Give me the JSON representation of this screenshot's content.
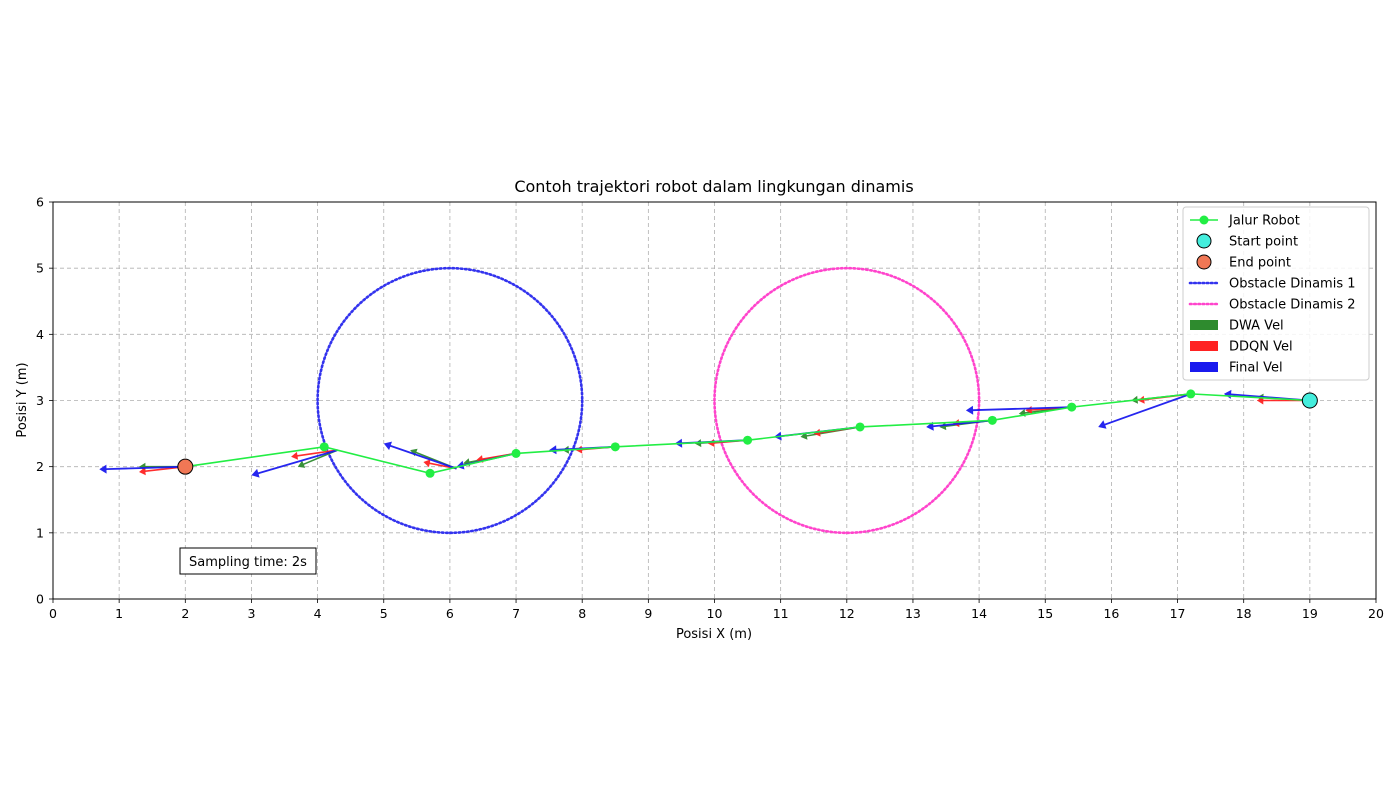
{
  "chart_data": {
    "type": "line",
    "title": "Contoh trajektori robot dalam lingkungan dinamis",
    "xlabel": "Posisi X (m)",
    "ylabel": "Posisi Y (m)",
    "xlim": [
      0,
      20
    ],
    "ylim": [
      0,
      6
    ],
    "xticks": [
      0,
      1,
      2,
      3,
      4,
      5,
      6,
      7,
      8,
      9,
      10,
      11,
      12,
      13,
      14,
      15,
      16,
      17,
      18,
      19,
      20
    ],
    "yticks": [
      0,
      1,
      2,
      3,
      4,
      5,
      6
    ],
    "grid": true,
    "legend_position": "top-right",
    "annotation": "Sampling time: 2s",
    "colors": {
      "path": "#22ee44",
      "start": "#44eedd",
      "end": "#f07755",
      "obstacle1": "#3333ee",
      "obstacle2": "#ff44cc",
      "dwa": "#2e8b2e",
      "ddqn": "#ff2222",
      "final": "#1a1aee"
    },
    "path": {
      "name": "Jalur Robot",
      "x": [
        19,
        17.2,
        15.4,
        14.2,
        12.2,
        10.5,
        8.5,
        7.0,
        5.7,
        4.1,
        2.0
      ],
      "y": [
        3.0,
        3.1,
        2.9,
        2.7,
        2.6,
        2.4,
        2.3,
        2.2,
        1.9,
        2.3,
        2.0
      ]
    },
    "start_point": {
      "name": "Start point",
      "x": 19,
      "y": 3.0
    },
    "end_point": {
      "name": "End point",
      "x": 2,
      "y": 2.0
    },
    "obstacles": [
      {
        "name": "Obstacle Dinamis 1",
        "cx": 6,
        "cy": 3,
        "r": 2
      },
      {
        "name": "Obstacle Dinamis 2",
        "cx": 12,
        "cy": 3,
        "r": 2
      }
    ],
    "velocity_legend": [
      "DWA Vel",
      "DDQN Vel",
      "Final Vel"
    ],
    "velocity_arrows": [
      {
        "x": 19.0,
        "y": 3.0,
        "dwa": [
          -0.8,
          0.05
        ],
        "ddqn": [
          -0.8,
          0.0
        ],
        "final": [
          -1.3,
          0.1
        ]
      },
      {
        "x": 17.2,
        "y": 3.1,
        "dwa": [
          -0.9,
          -0.1
        ],
        "ddqn": [
          -0.8,
          -0.1
        ],
        "final": [
          -1.4,
          -0.5
        ]
      },
      {
        "x": 15.4,
        "y": 2.9,
        "dwa": [
          -0.8,
          -0.1
        ],
        "ddqn": [
          -0.7,
          -0.05
        ],
        "final": [
          -1.6,
          -0.05
        ]
      },
      {
        "x": 14.2,
        "y": 2.7,
        "dwa": [
          -0.8,
          -0.1
        ],
        "ddqn": [
          -0.6,
          -0.05
        ],
        "final": [
          -1.0,
          -0.1
        ]
      },
      {
        "x": 12.2,
        "y": 2.6,
        "dwa": [
          -0.9,
          -0.15
        ],
        "ddqn": [
          -0.7,
          -0.1
        ],
        "final": [
          -1.3,
          -0.15
        ]
      },
      {
        "x": 10.5,
        "y": 2.4,
        "dwa": [
          -0.8,
          -0.05
        ],
        "ddqn": [
          -0.6,
          -0.05
        ],
        "final": [
          -1.1,
          -0.05
        ]
      },
      {
        "x": 8.5,
        "y": 2.3,
        "dwa": [
          -0.8,
          -0.05
        ],
        "ddqn": [
          -0.6,
          -0.05
        ],
        "final": [
          -1.0,
          -0.05
        ]
      },
      {
        "x": 7.0,
        "y": 2.2,
        "dwa": [
          -0.8,
          -0.15
        ],
        "ddqn": [
          -0.6,
          -0.1
        ],
        "final": [
          -0.9,
          -0.2
        ]
      },
      {
        "x": 6.1,
        "y": 1.97,
        "dwa": [
          -0.7,
          0.28
        ],
        "ddqn": [
          -0.5,
          0.1
        ],
        "final": [
          -1.1,
          0.38
        ]
      },
      {
        "x": 4.3,
        "y": 2.25,
        "dwa": [
          -0.6,
          -0.25
        ],
        "ddqn": [
          -0.7,
          -0.1
        ],
        "final": [
          -1.3,
          -0.38
        ]
      },
      {
        "x": 2.0,
        "y": 2.0,
        "dwa": [
          -0.7,
          0.0
        ],
        "ddqn": [
          -0.7,
          -0.08
        ],
        "final": [
          -1.3,
          -0.04
        ]
      }
    ]
  }
}
